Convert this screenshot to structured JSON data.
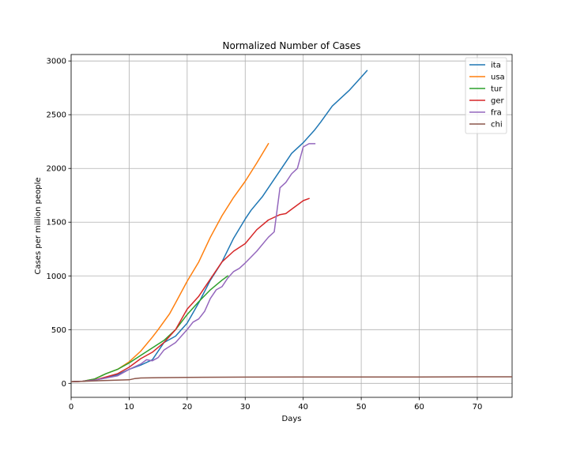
{
  "chart_data": {
    "type": "line",
    "title": "Normalized Number of Cases",
    "xlabel": "Days",
    "ylabel": "Cases per million people",
    "xlim": [
      0,
      76
    ],
    "ylim": [
      -130,
      3060
    ],
    "xticks": [
      0,
      10,
      20,
      30,
      40,
      50,
      60,
      70
    ],
    "yticks": [
      0,
      500,
      1000,
      1500,
      2000,
      2500,
      3000
    ],
    "grid": true,
    "legend_position": "top-right",
    "series": [
      {
        "name": "ita",
        "color": "#1f77b4",
        "x": [
          0,
          2,
          4,
          6,
          8,
          10,
          12,
          14,
          16,
          18,
          20,
          22,
          24,
          26,
          28,
          30,
          31,
          33,
          35,
          37,
          38,
          40,
          42,
          43,
          45,
          47,
          48,
          50,
          51
        ],
        "y": [
          15,
          20,
          30,
          50,
          80,
          130,
          170,
          220,
          380,
          440,
          560,
          750,
          960,
          1130,
          1350,
          1530,
          1610,
          1740,
          1900,
          2060,
          2140,
          2240,
          2360,
          2430,
          2580,
          2680,
          2730,
          2850,
          2910
        ]
      },
      {
        "name": "usa",
        "color": "#ff7f0e",
        "x": [
          0,
          2,
          4,
          6,
          8,
          10,
          12,
          14,
          15,
          17,
          18,
          20,
          22,
          24,
          26,
          28,
          30,
          32,
          34
        ],
        "y": [
          15,
          20,
          40,
          90,
          130,
          200,
          300,
          430,
          500,
          650,
          750,
          950,
          1130,
          1360,
          1560,
          1730,
          1880,
          2050,
          2230
        ]
      },
      {
        "name": "tur",
        "color": "#2ca02c",
        "x": [
          0,
          2,
          4,
          6,
          8,
          10,
          12,
          14,
          16,
          18,
          20,
          22,
          24,
          26,
          27
        ],
        "y": [
          15,
          20,
          40,
          90,
          130,
          190,
          260,
          330,
          400,
          500,
          640,
          760,
          870,
          960,
          1000
        ]
      },
      {
        "name": "ger",
        "color": "#d62728",
        "x": [
          0,
          2,
          4,
          6,
          8,
          10,
          12,
          14,
          16,
          18,
          20,
          22,
          24,
          26,
          28,
          30,
          32,
          34,
          36,
          37,
          38,
          40,
          41
        ],
        "y": [
          15,
          20,
          30,
          60,
          90,
          150,
          230,
          290,
          380,
          500,
          690,
          810,
          970,
          1130,
          1230,
          1300,
          1430,
          1520,
          1570,
          1580,
          1620,
          1700,
          1720
        ]
      },
      {
        "name": "fra",
        "color": "#9467bd",
        "x": [
          0,
          2,
          4,
          6,
          8,
          10,
          12,
          13,
          14,
          15,
          16,
          18,
          20,
          21,
          22,
          23,
          24,
          25,
          26,
          27,
          28,
          29,
          30,
          32,
          34,
          35,
          36,
          37,
          38,
          39,
          40,
          41,
          42
        ],
        "y": [
          15,
          20,
          30,
          50,
          70,
          130,
          180,
          220,
          210,
          240,
          310,
          380,
          500,
          570,
          600,
          670,
          790,
          870,
          900,
          980,
          1040,
          1070,
          1120,
          1230,
          1360,
          1410,
          1820,
          1870,
          1950,
          2000,
          2200,
          2230,
          2230
        ]
      },
      {
        "name": "chi",
        "color": "#8c564b",
        "x": [
          0,
          5,
          10,
          11,
          12,
          15,
          20,
          30,
          40,
          50,
          60,
          70,
          76
        ],
        "y": [
          15,
          25,
          33,
          45,
          50,
          53,
          56,
          58,
          59,
          60,
          60,
          61,
          61
        ]
      }
    ]
  }
}
